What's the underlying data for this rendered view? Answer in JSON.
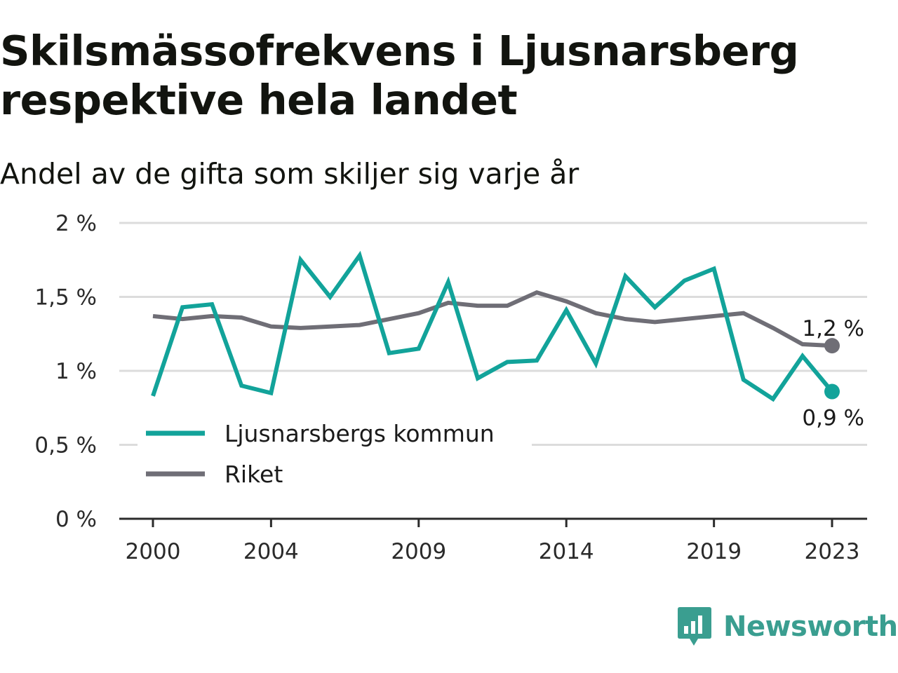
{
  "title": "Skilsmässofrekvens i Ljusnarsberg respektive hela landet",
  "subtitle": "Andel av de gifta som skiljer sig varje år",
  "brand": {
    "name": "Newsworthy",
    "icon": "newsworthy-logo-icon",
    "color": "#3a9e90"
  },
  "chart_data": {
    "type": "line",
    "x": [
      2000,
      2001,
      2002,
      2003,
      2004,
      2005,
      2006,
      2007,
      2008,
      2009,
      2010,
      2011,
      2012,
      2013,
      2014,
      2015,
      2016,
      2017,
      2018,
      2019,
      2020,
      2021,
      2022,
      2023
    ],
    "x_ticks": [
      "2000",
      "2004",
      "2009",
      "2014",
      "2019",
      "2023"
    ],
    "y_ticks": [
      "0 %",
      "0,5 %",
      "1 %",
      "1,5 %",
      "2 %"
    ],
    "ylim": [
      0,
      2
    ],
    "grid": true,
    "legend_position": "bottom-left",
    "series": [
      {
        "name": "Ljusnarsbergs kommun",
        "color": "#12a39a",
        "values": [
          0.83,
          1.43,
          1.45,
          0.9,
          0.85,
          1.75,
          1.5,
          1.78,
          1.12,
          1.15,
          1.6,
          0.95,
          1.06,
          1.07,
          1.41,
          1.05,
          1.64,
          1.43,
          1.61,
          1.69,
          0.94,
          0.81,
          1.1,
          0.86
        ],
        "end_label": "0,9 %"
      },
      {
        "name": "Riket",
        "color": "#6f6e76",
        "values": [
          1.37,
          1.35,
          1.37,
          1.36,
          1.3,
          1.29,
          1.3,
          1.31,
          1.35,
          1.39,
          1.46,
          1.44,
          1.44,
          1.53,
          1.47,
          1.39,
          1.35,
          1.33,
          1.35,
          1.37,
          1.39,
          1.29,
          1.18,
          1.17
        ],
        "end_label": "1,2 %"
      }
    ]
  }
}
